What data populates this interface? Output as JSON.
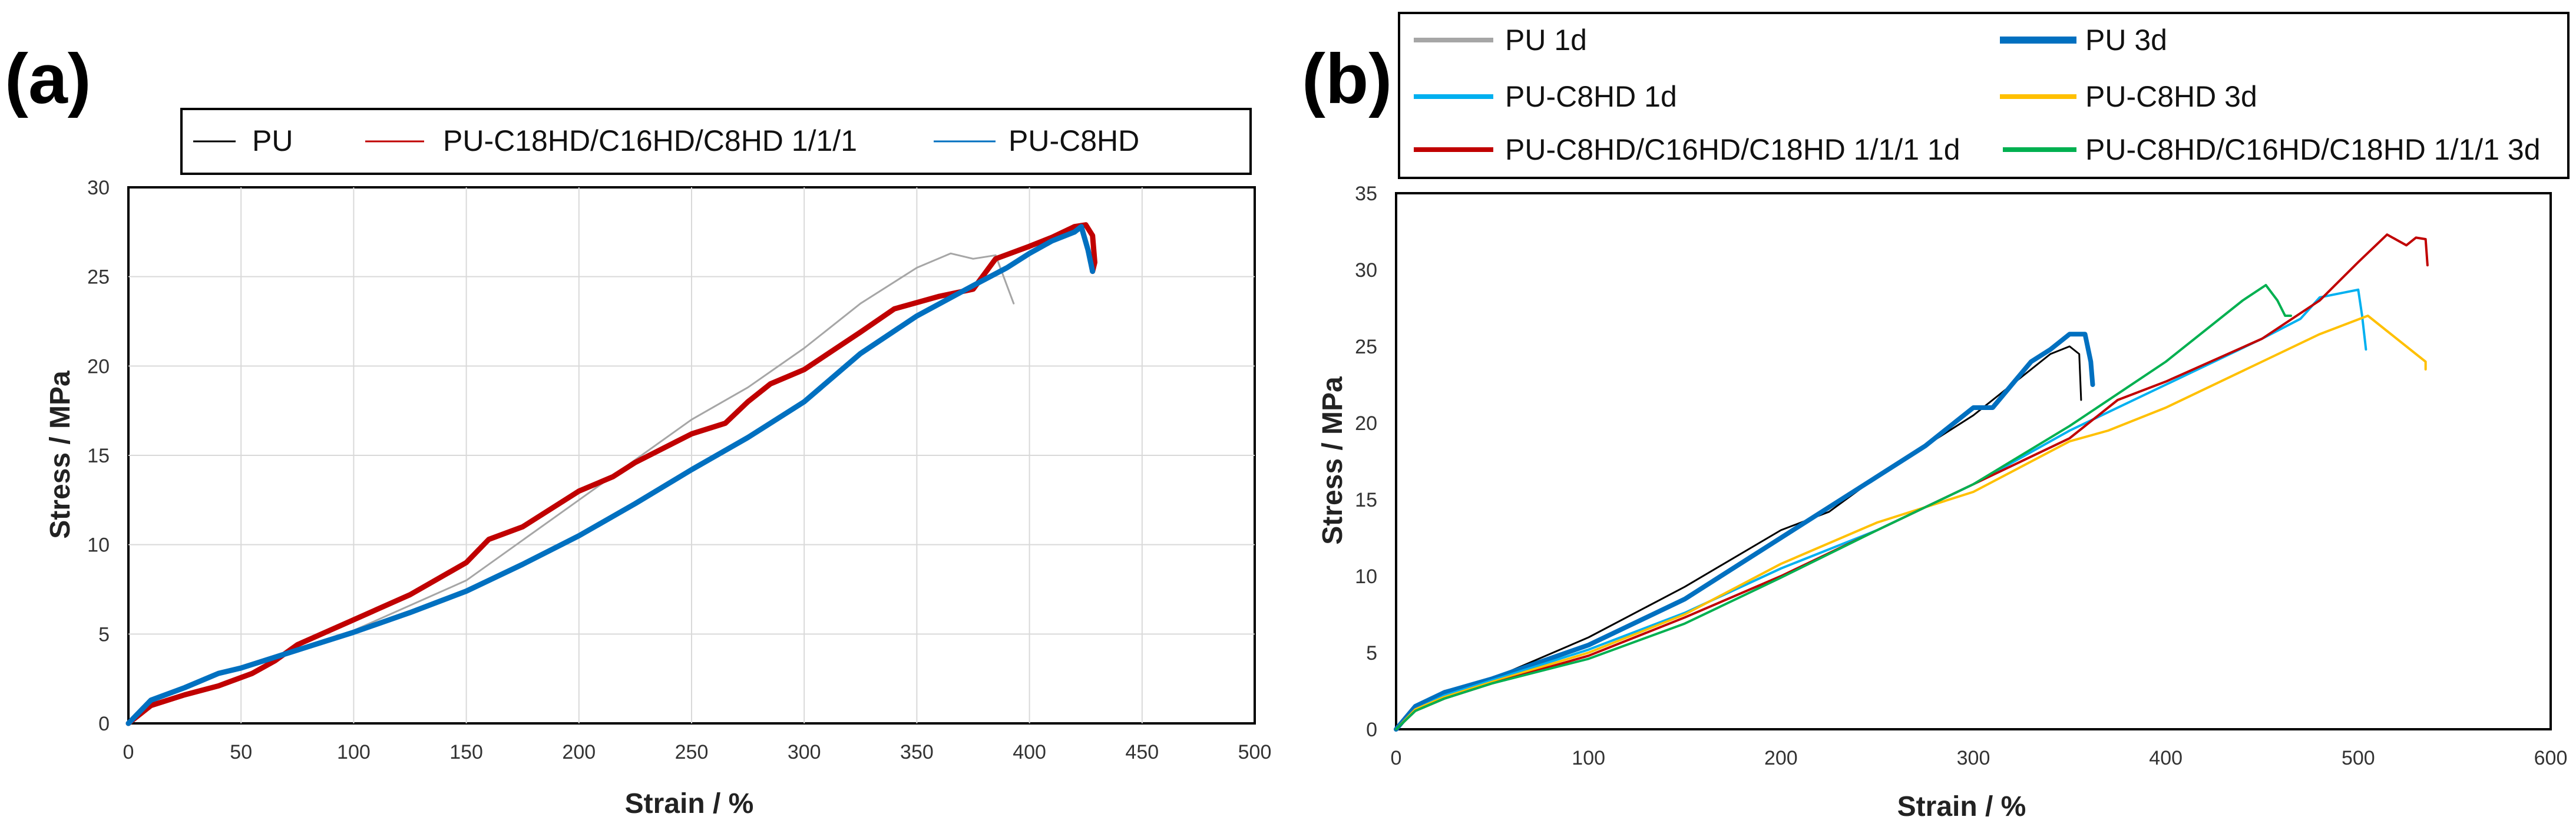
{
  "chart_data": [
    {
      "type": "line",
      "panel_label": "(a)",
      "xlabel": "Strain / %",
      "ylabel": "Stress / MPa",
      "xlim": [
        0,
        500
      ],
      "ylim": [
        0,
        30
      ],
      "xticks": [
        0,
        50,
        100,
        150,
        200,
        250,
        300,
        350,
        400,
        450,
        500
      ],
      "yticks": [
        0,
        5,
        10,
        15,
        20,
        25,
        30
      ],
      "grid": true,
      "legend": {
        "placement": "top",
        "entries": [
          {
            "label": "PU",
            "color": "#000000"
          },
          {
            "label": "PU-C18HD/C16HD/C8HD 1/1/1",
            "color": "#c00000"
          },
          {
            "label": "PU-C8HD",
            "color": "#0070c0"
          }
        ]
      },
      "series": [
        {
          "color": "#a6a6a6",
          "width": 3,
          "x": [
            0,
            10,
            25,
            50,
            75,
            100,
            150,
            200,
            250,
            275,
            300,
            325,
            350,
            365,
            375,
            385,
            390,
            393
          ],
          "y": [
            0,
            1.2,
            2.0,
            3.2,
            4.2,
            5.2,
            8.0,
            12.5,
            17.0,
            18.8,
            21.0,
            23.5,
            25.5,
            26.3,
            26.0,
            26.2,
            24.5,
            23.5
          ]
        },
        {
          "color": "#c00000",
          "width": 9,
          "x": [
            0,
            10,
            25,
            40,
            55,
            65,
            75,
            100,
            125,
            150,
            160,
            175,
            200,
            215,
            225,
            250,
            265,
            275,
            285,
            300,
            325,
            340,
            360,
            375,
            385,
            400,
            410,
            420,
            425,
            428,
            429,
            428
          ],
          "y": [
            0,
            1.0,
            1.6,
            2.1,
            2.8,
            3.5,
            4.4,
            5.8,
            7.2,
            9.0,
            10.3,
            11.0,
            13.0,
            13.8,
            14.6,
            16.2,
            16.8,
            18.0,
            19.0,
            19.8,
            21.9,
            23.2,
            23.9,
            24.3,
            26.0,
            26.7,
            27.2,
            27.8,
            27.9,
            27.3,
            25.8,
            25.3
          ]
        },
        {
          "color": "#0070c0",
          "width": 9,
          "x": [
            0,
            10,
            25,
            40,
            50,
            75,
            100,
            125,
            150,
            175,
            200,
            225,
            250,
            275,
            300,
            325,
            350,
            375,
            390,
            400,
            410,
            420,
            423,
            426,
            428
          ],
          "y": [
            0,
            1.3,
            2.0,
            2.8,
            3.1,
            4.1,
            5.1,
            6.2,
            7.4,
            8.9,
            10.5,
            12.3,
            14.2,
            16.0,
            18.0,
            20.7,
            22.8,
            24.5,
            25.5,
            26.3,
            27.0,
            27.5,
            27.8,
            26.5,
            25.3
          ]
        }
      ]
    },
    {
      "type": "line",
      "panel_label": "(b)",
      "xlabel": "Strain / %",
      "ylabel": "Stress / MPa",
      "xlim": [
        0,
        600
      ],
      "ylim": [
        0,
        35
      ],
      "xticks": [
        0,
        100,
        200,
        300,
        400,
        500,
        600
      ],
      "yticks": [
        0,
        5,
        10,
        15,
        20,
        25,
        30,
        35
      ],
      "grid": false,
      "legend": {
        "placement": "top",
        "entries": [
          {
            "label": "PU 1d",
            "color": "#a6a6a6"
          },
          {
            "label": "PU 3d",
            "color": "#0070c0"
          },
          {
            "label": "PU-C8HD 1d",
            "color": "#00b0f0"
          },
          {
            "label": "PU-C8HD 3d",
            "color": "#ffc000"
          },
          {
            "label": "PU-C8HD/C16HD/C18HD 1/1/1 1d",
            "color": "#c00000"
          },
          {
            "label": "PU-C8HD/C16HD/C18HD 1/1/1 3d",
            "color": "#00b050"
          }
        ]
      },
      "series": [
        {
          "color": "#000000",
          "width": 3,
          "x": [
            0,
            10,
            25,
            50,
            100,
            150,
            200,
            225,
            250,
            275,
            300,
            325,
            340,
            350,
            355,
            356
          ],
          "y": [
            0,
            1.5,
            2.5,
            3.3,
            6.0,
            9.3,
            13.0,
            14.2,
            16.5,
            18.5,
            20.5,
            23.0,
            24.5,
            25.0,
            24.5,
            21.5
          ]
        },
        {
          "color": "#0070c0",
          "width": 8,
          "x": [
            0,
            10,
            25,
            50,
            100,
            150,
            200,
            225,
            250,
            275,
            290,
            300,
            310,
            320,
            330,
            340,
            350,
            358,
            361,
            362
          ],
          "y": [
            0,
            1.5,
            2.4,
            3.3,
            5.5,
            8.5,
            12.5,
            14.5,
            16.5,
            18.5,
            20.0,
            21.0,
            21.0,
            22.5,
            24.0,
            24.8,
            25.8,
            25.8,
            24.0,
            22.5
          ]
        },
        {
          "color": "#00b0f0",
          "width": 4,
          "x": [
            0,
            10,
            25,
            50,
            100,
            150,
            200,
            250,
            300,
            350,
            400,
            450,
            470,
            480,
            500,
            502,
            504
          ],
          "y": [
            0,
            1.3,
            2.2,
            3.2,
            5.2,
            7.6,
            10.5,
            13.0,
            16.0,
            19.5,
            22.5,
            25.5,
            26.8,
            28.2,
            28.7,
            27.0,
            24.8
          ]
        },
        {
          "color": "#ffc000",
          "width": 4,
          "x": [
            0,
            10,
            25,
            50,
            100,
            150,
            200,
            250,
            300,
            350,
            370,
            400,
            450,
            480,
            505,
            515,
            530,
            535,
            535
          ],
          "y": [
            0,
            1.3,
            2.1,
            3.1,
            5.0,
            7.5,
            10.8,
            13.5,
            15.5,
            18.8,
            19.5,
            21.0,
            24.0,
            25.8,
            27.0,
            26.0,
            24.5,
            24.0,
            23.5
          ]
        },
        {
          "color": "#c00000",
          "width": 4,
          "x": [
            0,
            10,
            25,
            50,
            100,
            150,
            200,
            250,
            300,
            350,
            375,
            400,
            450,
            480,
            500,
            515,
            525,
            530,
            535,
            536
          ],
          "y": [
            0,
            1.2,
            2.0,
            3.0,
            4.8,
            7.3,
            10.0,
            13.0,
            16.0,
            19.0,
            21.5,
            22.7,
            25.5,
            28.0,
            30.5,
            32.3,
            31.6,
            32.1,
            32.0,
            30.3
          ]
        },
        {
          "color": "#00b050",
          "width": 4,
          "x": [
            0,
            10,
            25,
            50,
            100,
            150,
            200,
            250,
            300,
            350,
            400,
            440,
            452,
            458,
            462,
            465
          ],
          "y": [
            0,
            1.2,
            2.0,
            3.0,
            4.6,
            6.9,
            9.9,
            13.0,
            16.0,
            19.8,
            24.0,
            28.0,
            29.0,
            28.0,
            27.0,
            27.0
          ]
        }
      ]
    }
  ]
}
